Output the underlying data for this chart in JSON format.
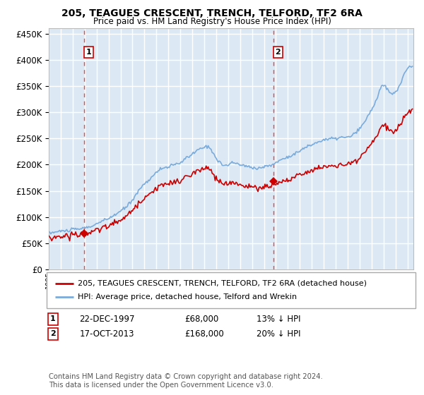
{
  "title": "205, TEAGUES CRESCENT, TRENCH, TELFORD, TF2 6RA",
  "subtitle": "Price paid vs. HM Land Registry's House Price Index (HPI)",
  "background_color": "#dce9f5",
  "plot_bg": "#dce9f5",
  "grid_color": "#ffffff",
  "sale1_date": 1997.97,
  "sale1_price": 68000,
  "sale2_date": 2013.79,
  "sale2_price": 168000,
  "legend_line1": "205, TEAGUES CRESCENT, TRENCH, TELFORD, TF2 6RA (detached house)",
  "legend_line2": "HPI: Average price, detached house, Telford and Wrekin",
  "footnote": "Contains HM Land Registry data © Crown copyright and database right 2024.\nThis data is licensed under the Open Government Licence v3.0.",
  "ylim": [
    0,
    460000
  ],
  "xlim_start": 1995.0,
  "xlim_end": 2025.5,
  "hpi_color": "#7aabdb",
  "price_color": "#cc0000",
  "dashed_line_color": "#ee4444",
  "box_color": "#cc0000"
}
